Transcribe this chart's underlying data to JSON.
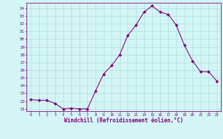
{
  "x": [
    0,
    1,
    2,
    3,
    4,
    5,
    6,
    7,
    8,
    9,
    10,
    11,
    12,
    13,
    14,
    15,
    16,
    17,
    18,
    19,
    20,
    21,
    22,
    23
  ],
  "y": [
    22.2,
    22.1,
    22.1,
    21.7,
    21.0,
    21.1,
    21.0,
    21.0,
    23.3,
    25.5,
    26.6,
    28.0,
    30.5,
    31.8,
    33.5,
    34.3,
    33.5,
    33.2,
    31.8,
    29.2,
    27.2,
    25.8,
    25.8,
    24.6
  ],
  "line_color": "#800080",
  "marker": "D",
  "marker_size": 2,
  "bg_color": "#d4f5f5",
  "grid_color": "#aadddd",
  "xlabel": "Windchill (Refroidissement éolien,°C)",
  "xlabel_color": "#800080",
  "tick_color": "#800080",
  "ylim": [
    20.7,
    34.7
  ],
  "xlim": [
    -0.5,
    23.5
  ],
  "yticks": [
    21,
    22,
    23,
    24,
    25,
    26,
    27,
    28,
    29,
    30,
    31,
    32,
    33,
    34
  ],
  "xticks": [
    0,
    1,
    2,
    3,
    4,
    5,
    6,
    7,
    8,
    9,
    10,
    11,
    12,
    13,
    14,
    15,
    16,
    17,
    18,
    19,
    20,
    21,
    22,
    23
  ]
}
